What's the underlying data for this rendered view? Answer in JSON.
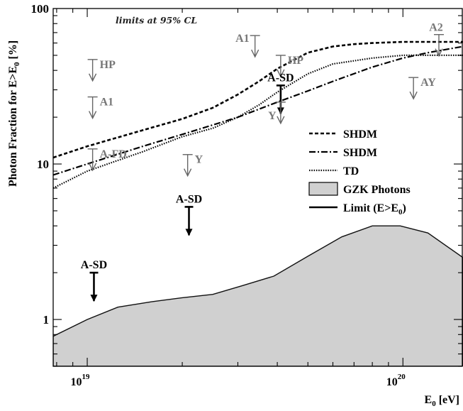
{
  "chart_data": {
    "type": "line",
    "title": "",
    "annotation": "limits at 95% CL",
    "xlabel_main": "E",
    "xlabel_sub": "0",
    "xlabel_tail": " [eV]",
    "ylabel_main": "Photon Fraction for E>E",
    "ylabel_sub": "0",
    "ylabel_tail": " [%]",
    "xscale": "log",
    "yscale": "log",
    "xlim": [
      7.8e+18,
      1.55e+20
    ],
    "ylim": [
      0.5,
      100
    ],
    "x_ticks": [
      {
        "value": 1e+19,
        "base": "10",
        "exp": "19"
      },
      {
        "value": 1e+20,
        "base": "10",
        "exp": "20"
      }
    ],
    "y_ticks": [
      {
        "value": 1,
        "label": "1"
      },
      {
        "value": 10,
        "label": "10"
      },
      {
        "value": 100,
        "label": "100"
      }
    ],
    "legend_position": "right",
    "legend": [
      {
        "label": "SHDM",
        "style": "dashed"
      },
      {
        "label": "SHDM",
        "style": "dashdot"
      },
      {
        "label": "TD",
        "style": "dotted"
      },
      {
        "label": "GZK Photons",
        "style": "fill"
      },
      {
        "label": "Limit (E>E",
        "sub": "0",
        "tail": ")",
        "style": "arrow"
      }
    ],
    "series": [
      {
        "style": "dashed",
        "x": [
          7.8e+18,
          1e+19,
          1.5e+19,
          2e+19,
          2.5e+19,
          3e+19,
          3.5e+19,
          4e+19,
          5e+19,
          6e+19,
          7e+19,
          8e+19,
          1e+20,
          1.2e+20,
          1.55e+20
        ],
        "y": [
          11,
          13,
          16.5,
          19.5,
          23,
          28,
          34,
          41,
          52,
          57,
          59,
          60,
          61,
          61,
          61
        ]
      },
      {
        "style": "dashdot",
        "x": [
          7.8e+18,
          1e+19,
          1.5e+19,
          2e+19,
          3e+19,
          4e+19,
          5e+19,
          6e+19,
          8e+19,
          1e+20,
          1.2e+20,
          1.4e+20,
          1.55e+20
        ],
        "y": [
          8.5,
          10,
          13,
          15.5,
          20,
          25,
          29.5,
          34,
          42,
          48,
          52,
          55,
          57
        ]
      },
      {
        "style": "dotted",
        "x": [
          7.8e+18,
          1e+19,
          1.5e+19,
          2e+19,
          2.5e+19,
          3e+19,
          3.5e+19,
          4e+19,
          5e+19,
          6e+19,
          8e+19,
          1e+20,
          1.3e+20,
          1.55e+20
        ],
        "y": [
          7,
          9,
          12,
          15,
          17,
          20,
          24,
          29,
          38,
          44,
          48,
          50,
          50,
          50
        ]
      }
    ],
    "gzk_photons": {
      "x": [
        7.8e+18,
        1e+19,
        1.25e+19,
        1.6e+19,
        2e+19,
        2.5e+19,
        3.1e+19,
        3.9e+19,
        5e+19,
        6.4e+19,
        8e+19,
        9.8e+19,
        1.2e+20,
        1.55e+20
      ],
      "y": [
        0.78,
        1.0,
        1.2,
        1.3,
        1.38,
        1.45,
        1.65,
        1.9,
        2.55,
        3.4,
        4.0,
        4.0,
        3.6,
        2.5
      ]
    },
    "limits": [
      {
        "label": "HP",
        "x": 1.04e+19,
        "y": 47,
        "style": "gray"
      },
      {
        "label": "A1",
        "x": 1.04e+19,
        "y": 27,
        "style": "gray"
      },
      {
        "label": "A-FD",
        "x": 1.04e+19,
        "y": 12.5,
        "style": "gray"
      },
      {
        "label": "A-SD",
        "x": 1.05e+19,
        "y": 2.0,
        "style": "black"
      },
      {
        "label": "Y",
        "x": 2.08e+19,
        "y": 11.5,
        "style": "gray"
      },
      {
        "label": "A-SD",
        "x": 2.1e+19,
        "y": 5.3,
        "style": "black"
      },
      {
        "label": "A1",
        "x": 3.4e+19,
        "y": 67,
        "style": "gray"
      },
      {
        "label": "HP",
        "x": 4.1e+19,
        "y": 50,
        "style": "gray"
      },
      {
        "label": "A-SD",
        "x": 4.1e+19,
        "y": 32,
        "style": "black"
      },
      {
        "label": "Y",
        "x": 4.1e+19,
        "y": 25,
        "style": "gray"
      },
      {
        "label": "A2",
        "x": 1.3e+20,
        "y": 68,
        "style": "gray"
      },
      {
        "label": "AY",
        "x": 1.08e+20,
        "y": 36,
        "style": "gray"
      }
    ]
  }
}
